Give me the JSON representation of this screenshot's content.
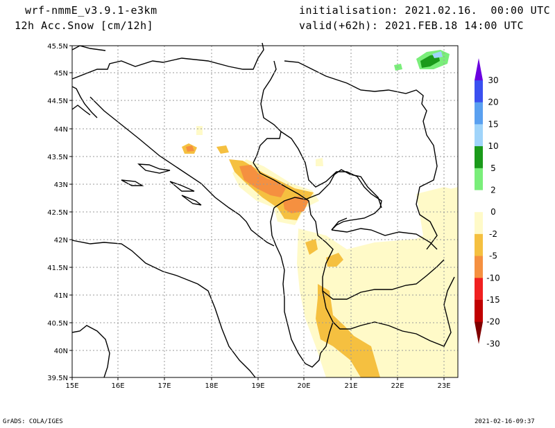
{
  "header": {
    "model": "wrf-nmmE_v3.9.1-e3km",
    "field": "12h Acc.Snow [cm/12h]",
    "init": "initialisation: 2021.02.16.  00:00 UTC",
    "valid": "valid(+62h): 2021.FEB.18 14:00 UTC"
  },
  "footer": {
    "left": "GrADS: COLA/IGES",
    "right": "2021-02-16-09:37"
  },
  "map": {
    "x_ticks": [
      "15E",
      "16E",
      "17E",
      "18E",
      "19E",
      "20E",
      "21E",
      "22E",
      "23E"
    ],
    "y_ticks": [
      "45.5N",
      "45N",
      "44.5N",
      "44N",
      "43.5N",
      "43N",
      "42.5N",
      "42N",
      "41.5N",
      "41N",
      "40.5N",
      "40N",
      "39.5N"
    ]
  },
  "colorbar": {
    "labels": [
      "30",
      "20",
      "15",
      "10",
      "5",
      "2",
      "0",
      "-2",
      "-5",
      "-10",
      "-15",
      "-20",
      "-30"
    ],
    "colors": [
      "#6a00e0",
      "#3a50f0",
      "#5aa0f0",
      "#a0d4fa",
      "#1a9a1a",
      "#7aee7a",
      "#ffffff",
      "#fffac8",
      "#f5c040",
      "#f59040",
      "#f02020",
      "#c00000",
      "#800000"
    ]
  }
}
